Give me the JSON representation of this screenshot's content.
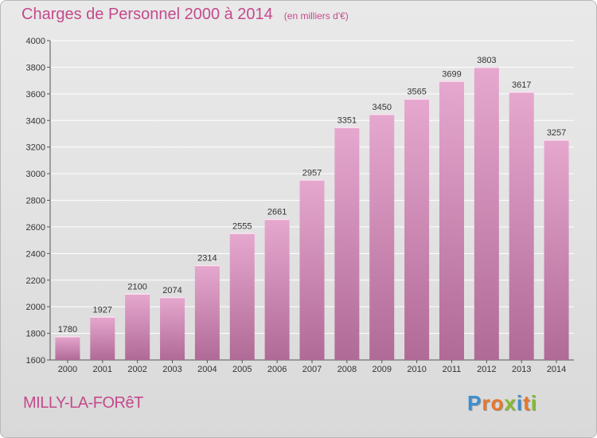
{
  "header": {
    "title": "Charges de Personnel 2000 à 2014",
    "subtitle": "(en milliers d'€)"
  },
  "footer": {
    "commune": "MILLY-LA-FORêT",
    "brand_letters": [
      "P",
      "r",
      "o",
      "x",
      "i",
      "t",
      "i"
    ],
    "brand_colors": [
      "#3b8fd1",
      "#e8772c",
      "#e8772c",
      "#86b92f",
      "#3b8fd1",
      "#e8772c",
      "#86b92f"
    ]
  },
  "colors": {
    "bar_light": "#e6a8cf",
    "bar_dark": "#b06a96",
    "accent": "#c44a8c",
    "grid": "#ffffff",
    "text": "#333333"
  },
  "chart_data": {
    "type": "bar",
    "categories": [
      "2000",
      "2001",
      "2002",
      "2003",
      "2004",
      "2005",
      "2006",
      "2007",
      "2008",
      "2009",
      "2010",
      "2011",
      "2012",
      "2013",
      "2014"
    ],
    "values": [
      1780,
      1927,
      2100,
      2074,
      2314,
      2555,
      2661,
      2957,
      3351,
      3450,
      3565,
      3699,
      3803,
      3617,
      3257
    ],
    "ylim": [
      1600,
      4000
    ],
    "yticks": [
      1600,
      1800,
      2000,
      2200,
      2400,
      2600,
      2800,
      3000,
      3200,
      3400,
      3600,
      3800,
      4000
    ],
    "grid": true,
    "data_labels": true,
    "title": "Charges de Personnel 2000 à 2014",
    "xlabel": "",
    "ylabel": ""
  }
}
